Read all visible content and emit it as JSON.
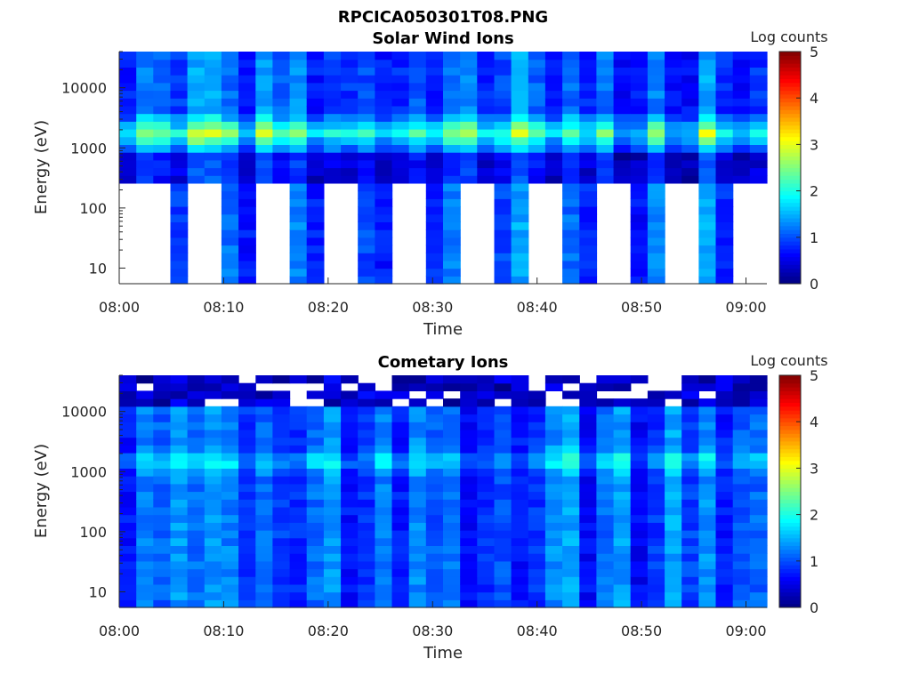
{
  "figure_title": "RPCICA050301T08.PNG",
  "chart_data": [
    {
      "type": "heatmap",
      "title": "Solar Wind Ions",
      "xlabel": "Time",
      "ylabel": "Energy (eV)",
      "x_ticks": [
        "08:00",
        "08:10",
        "08:20",
        "08:30",
        "08:40",
        "08:50",
        "09:00"
      ],
      "x_range_minutes": [
        0,
        62
      ],
      "y_scale": "log",
      "y_ticks": [
        "10",
        "100",
        "1000",
        "10000"
      ],
      "y_range_eV": [
        5.5,
        40000
      ],
      "colorbar_label": "Log counts",
      "colorbar_ticks": [
        "0",
        "1",
        "2",
        "3",
        "4",
        "5"
      ],
      "colorbar_range": [
        0,
        5
      ],
      "colormap": "jet",
      "peak_energy_eV": 1800,
      "peak_log_counts": 2.8,
      "missing_below_eV": 270,
      "missing_time_windows_minutes": [
        [
          0,
          4.2
        ],
        [
          7.3,
          10.6
        ],
        [
          13.7,
          17.0
        ],
        [
          20.0,
          23.4
        ],
        [
          26.4,
          29.8
        ],
        [
          32.8,
          36.2
        ],
        [
          39.2,
          42.6
        ],
        [
          45.6,
          48.9
        ],
        [
          52.0,
          55.3
        ],
        [
          58.4,
          61.8
        ]
      ]
    },
    {
      "type": "heatmap",
      "title": "Cometary Ions",
      "xlabel": "Time",
      "ylabel": "Energy (eV)",
      "x_ticks": [
        "08:00",
        "08:10",
        "08:20",
        "08:30",
        "08:40",
        "08:50",
        "09:00"
      ],
      "x_range_minutes": [
        0,
        62
      ],
      "y_scale": "log",
      "y_ticks": [
        "10",
        "100",
        "1000",
        "10000"
      ],
      "y_range_eV": [
        5.5,
        40000
      ],
      "colorbar_label": "Log counts",
      "colorbar_ticks": [
        "0",
        "1",
        "2",
        "3",
        "4",
        "5"
      ],
      "colorbar_range": [
        0,
        5
      ],
      "colormap": "jet",
      "peak_energy_eV": 1500,
      "peak_log_counts": 2.0,
      "missing_above_eV": 14000
    }
  ]
}
